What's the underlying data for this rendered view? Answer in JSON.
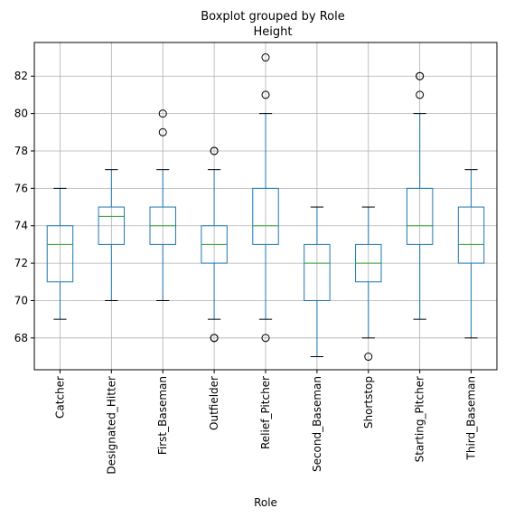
{
  "chart_data": {
    "type": "boxplot",
    "suptitle": "Boxplot grouped by Role",
    "title": "Height",
    "xlabel": "Role",
    "ylabel": "",
    "ylim": [
      66.3,
      83.8
    ],
    "yticks": [
      68,
      70,
      72,
      74,
      76,
      78,
      80,
      82
    ],
    "grid": true,
    "categories": [
      "Catcher",
      "Designated_Hitter",
      "First_Baseman",
      "Outfielder",
      "Relief_Pitcher",
      "Second_Baseman",
      "Shortstop",
      "Starting_Pitcher",
      "Third_Baseman"
    ],
    "boxes": [
      {
        "whisker_low": 69,
        "q1": 71,
        "median": 73,
        "q3": 74,
        "whisker_high": 76,
        "outliers": []
      },
      {
        "whisker_low": 70,
        "q1": 73,
        "median": 74.5,
        "q3": 75,
        "whisker_high": 77,
        "outliers": []
      },
      {
        "whisker_low": 70,
        "q1": 73,
        "median": 74,
        "q3": 75,
        "whisker_high": 77,
        "outliers": [
          79,
          80
        ]
      },
      {
        "whisker_low": 69,
        "q1": 72,
        "median": 73,
        "q3": 74,
        "whisker_high": 77,
        "outliers": [
          68,
          68,
          78,
          78
        ]
      },
      {
        "whisker_low": 69,
        "q1": 73,
        "median": 74,
        "q3": 76,
        "whisker_high": 80,
        "outliers": [
          68,
          81,
          83
        ]
      },
      {
        "whisker_low": 67,
        "q1": 70,
        "median": 72,
        "q3": 73,
        "whisker_high": 75,
        "outliers": []
      },
      {
        "whisker_low": 68,
        "q1": 71,
        "median": 72,
        "q3": 73,
        "whisker_high": 75,
        "outliers": [
          67
        ]
      },
      {
        "whisker_low": 69,
        "q1": 73,
        "median": 74,
        "q3": 76,
        "whisker_high": 80,
        "outliers": [
          81,
          82,
          82
        ]
      },
      {
        "whisker_low": 68,
        "q1": 72,
        "median": 73,
        "q3": 75,
        "whisker_high": 77,
        "outliers": []
      }
    ],
    "colors": {
      "box": "#1f77b4",
      "median": "#2ca02c",
      "whisker": "#1f77b4",
      "cap": "#000000",
      "flier": "#000000",
      "grid": "#b0b0b0"
    }
  }
}
